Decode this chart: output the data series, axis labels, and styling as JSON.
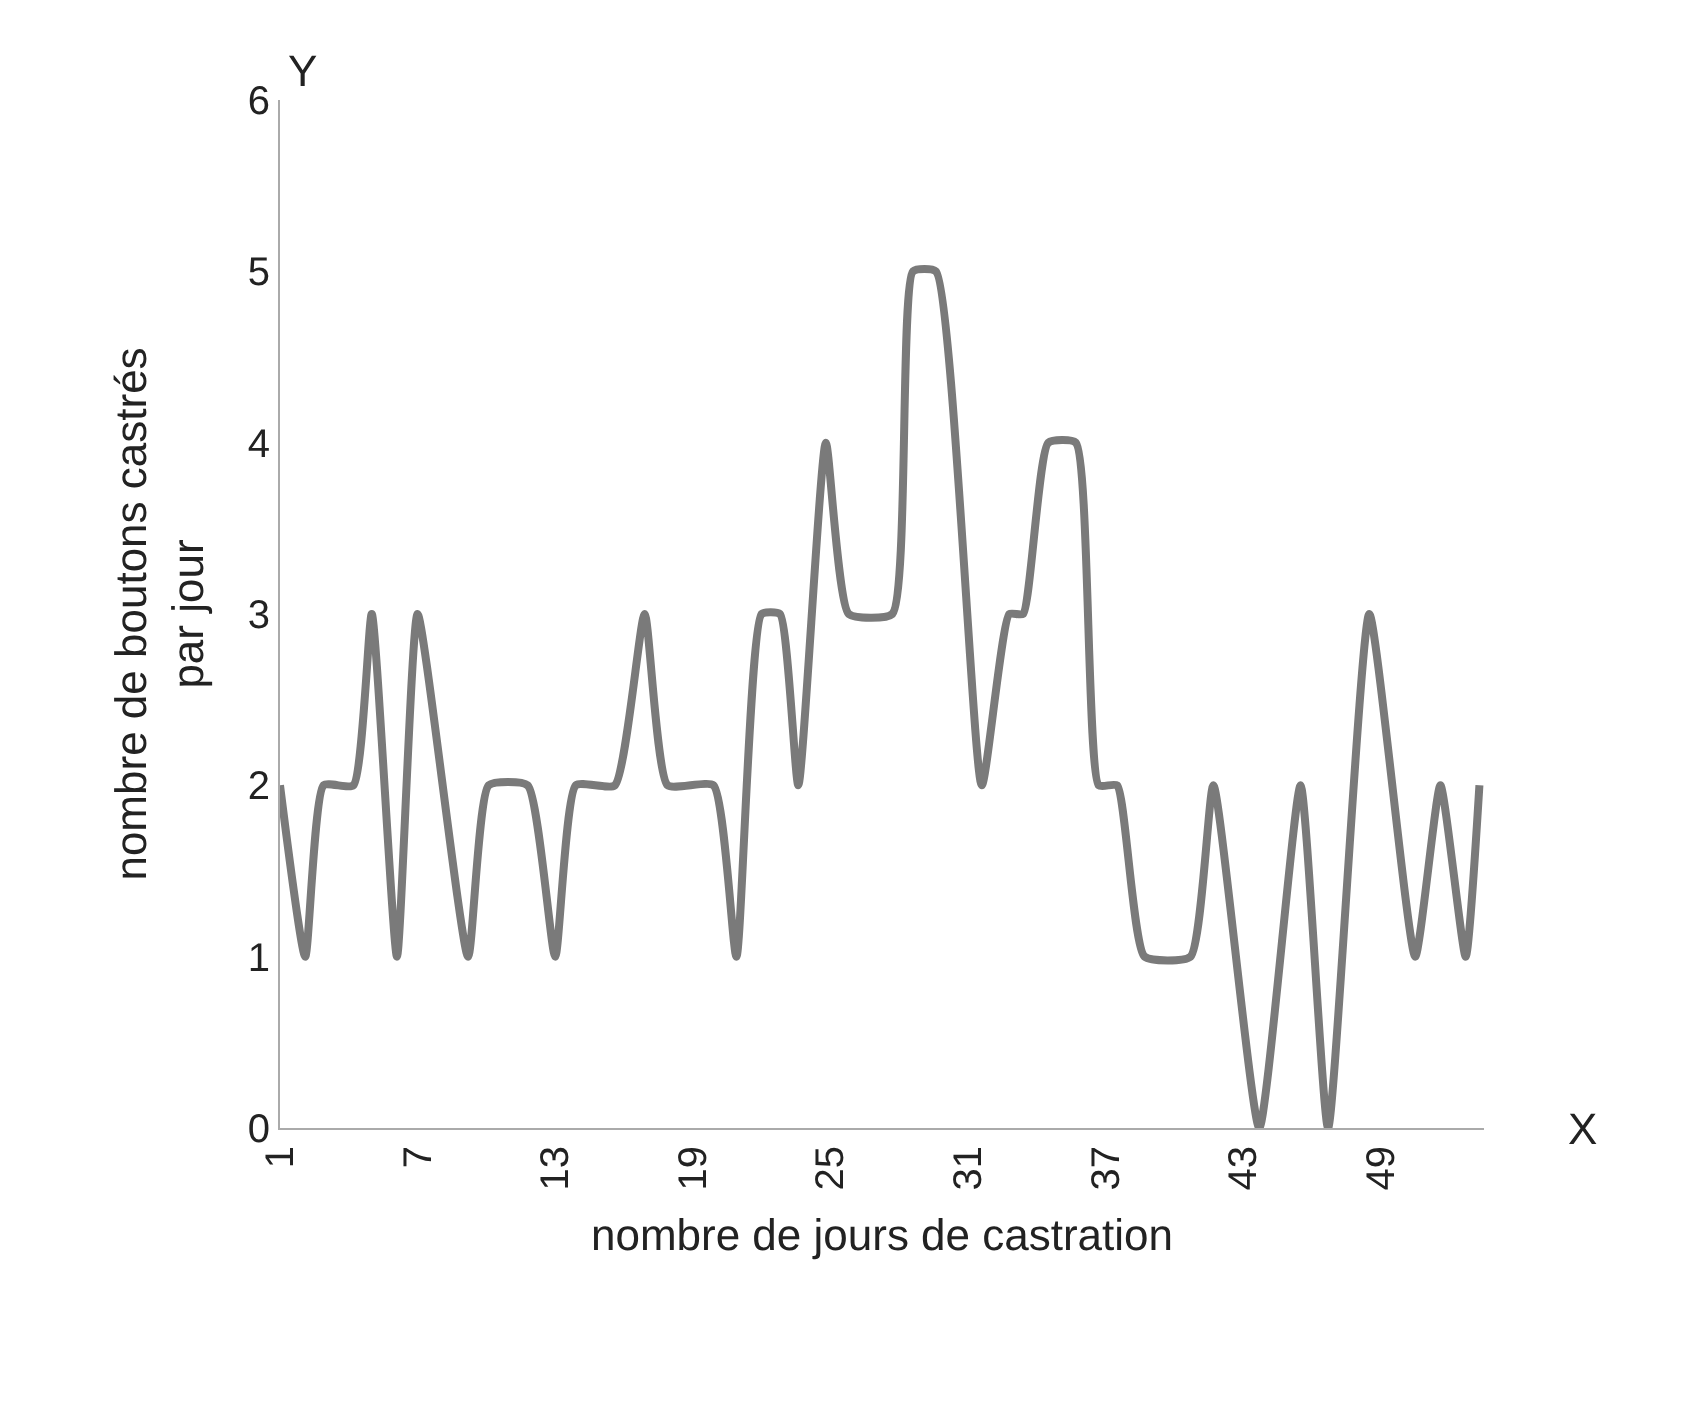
{
  "chart_data": {
    "type": "line",
    "xlabel": "nombre de jours de castration",
    "ylabel": "nombre de boutons castrés\npar jour",
    "annotations": [
      "Y",
      "X"
    ],
    "x": [
      1.0,
      2.1,
      2.9,
      4.2,
      5.0,
      6.1,
      7.0,
      9.2,
      10.1,
      11.8,
      13.0,
      13.9,
      15.6,
      16.9,
      17.9,
      19.9,
      20.9,
      22.0,
      22.8,
      23.6,
      24.8,
      25.8,
      27.7,
      28.6,
      29.6,
      31.6,
      32.8,
      33.4,
      34.5,
      35.7,
      36.7,
      37.5,
      38.7,
      40.7,
      41.7,
      43.7,
      45.5,
      46.7,
      48.5,
      50.5,
      51.6,
      52.7,
      53.3
    ],
    "series": [
      {
        "color": "#7a7a7a",
        "values": [
          2,
          1,
          2,
          2,
          3,
          1,
          3,
          1,
          2,
          2,
          1,
          2,
          2,
          3,
          2,
          2,
          1,
          3,
          3,
          2,
          4,
          3,
          3,
          5,
          5,
          2,
          3,
          3,
          4,
          4,
          2,
          2,
          1,
          1,
          2,
          0,
          2,
          0,
          3,
          1,
          2,
          1,
          2
        ]
      }
    ],
    "xlim": [
      1,
      53.5
    ],
    "xticks": [
      1,
      7,
      13,
      19,
      25,
      31,
      37,
      43,
      49
    ],
    "ylim": [
      0,
      6
    ],
    "yticks": [
      0,
      1,
      2,
      3,
      4,
      5,
      6
    ],
    "marker": "none",
    "line_style": "solid"
  }
}
